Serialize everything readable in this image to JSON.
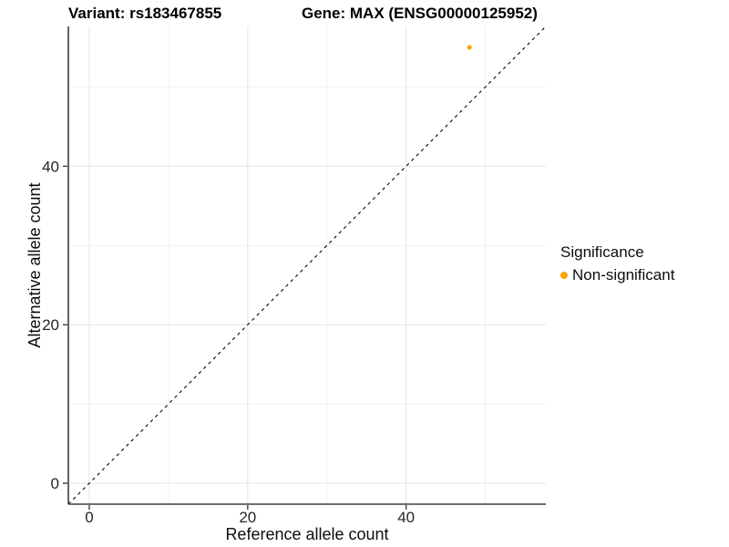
{
  "chart_data": {
    "type": "scatter",
    "title_left": "Variant: rs183467855",
    "title_right": "Gene: MAX (ENSG00000125952)",
    "xlabel": "Reference allele count",
    "ylabel": "Alternative allele count",
    "xlim": [
      -2.64,
      57.64
    ],
    "ylim": [
      -2.64,
      57.64
    ],
    "xticks": [
      0,
      20,
      40
    ],
    "yticks": [
      0,
      20,
      40
    ],
    "grid_major": [
      0,
      20,
      40
    ],
    "grid_minor": [
      10,
      30,
      50
    ],
    "grid": true,
    "reference_line": {
      "type": "identity",
      "slope": 1,
      "intercept": 0,
      "style": "dashed",
      "color": "#000000"
    },
    "points": [
      {
        "x": 48,
        "y": 55,
        "series": "Non-significant",
        "color": "#FFA500",
        "radius_px": 2.6
      }
    ],
    "legend": {
      "title": "Significance",
      "position": "right",
      "items": [
        {
          "label": "Non-significant",
          "color": "#FFA500",
          "marker": "circle"
        }
      ]
    },
    "colors": {
      "grid_major": "#E7E7E7",
      "grid_minor": "#F0F0F0",
      "axis_line": "#3F3F3F",
      "tick": "#3F3F3F",
      "tick_text": "#262626"
    }
  }
}
